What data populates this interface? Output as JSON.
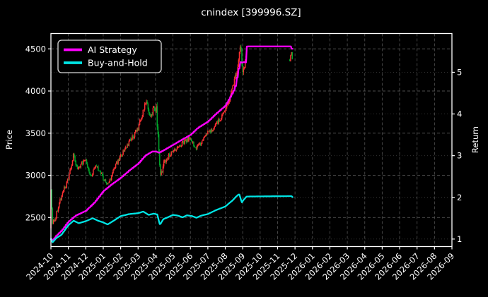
{
  "window": {
    "title": "cnindex [399996.SZ]"
  },
  "legend": {
    "items": [
      {
        "label": "AI Strategy",
        "color": "#ff00ff"
      },
      {
        "label": "Buy-and-Hold",
        "color": "#00e5e5"
      }
    ]
  },
  "colors": {
    "background": "#000000",
    "text": "#ffffff",
    "border": "#ffffff",
    "grid_major": "#4d4d4d",
    "grid_minor": "#3a3a3a",
    "candle_up": "#fc3032",
    "candle_down": "#00a42a",
    "ai_line": "#ff00ff",
    "bh_line": "#00e5e5"
  },
  "chart_data": {
    "type": "candlestick+line",
    "title": "cnindex [399996.SZ]",
    "xlabel": "",
    "left_axis": {
      "label": "Price",
      "ticks": [
        2500,
        3000,
        3500,
        4000,
        4500
      ],
      "min": 2155,
      "max": 4682
    },
    "right_axis": {
      "label": "Return",
      "ticks": [
        1,
        2,
        3,
        4,
        5
      ],
      "min": 0.82,
      "max": 5.93
    },
    "x_tick_labels": [
      "2024-10",
      "2024-11",
      "2024-12",
      "2025-01",
      "2025-02",
      "2025-03",
      "2025-04",
      "2025-05",
      "2025-06",
      "2025-07",
      "2025-08",
      "2025-09",
      "2025-10",
      "2025-11",
      "2025-12",
      "2026-01",
      "2026-02",
      "2026-03",
      "2026-04",
      "2026-05",
      "2026-06",
      "2026-07",
      "2026-08",
      "2026-09"
    ],
    "grid": true,
    "legend_position": "upper left",
    "candles": {
      "up_color": "#fc3032",
      "down_color": "#00a42a",
      "days_per_month": 21,
      "segments": [
        {
          "t_start": 0.0,
          "t_end": 11.22
        },
        {
          "t_start": 13.7,
          "t_end": 13.87
        }
      ],
      "price_keypoints": [
        [
          0.0,
          2820
        ],
        [
          0.1,
          2430
        ],
        [
          0.25,
          2480
        ],
        [
          0.4,
          2610
        ],
        [
          0.6,
          2740
        ],
        [
          0.8,
          2860
        ],
        [
          1.0,
          2950
        ],
        [
          1.3,
          3240
        ],
        [
          1.5,
          3060
        ],
        [
          1.75,
          3140
        ],
        [
          2.0,
          3160
        ],
        [
          2.3,
          2990
        ],
        [
          2.6,
          3130
        ],
        [
          2.85,
          3020
        ],
        [
          3.0,
          2960
        ],
        [
          3.3,
          2890
        ],
        [
          3.6,
          3070
        ],
        [
          4.0,
          3230
        ],
        [
          4.4,
          3360
        ],
        [
          4.7,
          3460
        ],
        [
          5.0,
          3560
        ],
        [
          5.2,
          3700
        ],
        [
          5.45,
          3870
        ],
        [
          5.6,
          3760
        ],
        [
          5.75,
          3700
        ],
        [
          5.9,
          3820
        ],
        [
          6.05,
          3780
        ],
        [
          6.18,
          3350
        ],
        [
          6.28,
          2960
        ],
        [
          6.45,
          3130
        ],
        [
          6.7,
          3220
        ],
        [
          7.0,
          3290
        ],
        [
          7.4,
          3360
        ],
        [
          7.7,
          3400
        ],
        [
          8.0,
          3450
        ],
        [
          8.3,
          3320
        ],
        [
          8.6,
          3380
        ],
        [
          9.0,
          3500
        ],
        [
          9.4,
          3580
        ],
        [
          9.8,
          3700
        ],
        [
          10.1,
          3820
        ],
        [
          10.4,
          4020
        ],
        [
          10.6,
          4180
        ],
        [
          10.8,
          4420
        ],
        [
          10.9,
          4520
        ],
        [
          11.0,
          4200
        ],
        [
          11.1,
          4300
        ],
        [
          11.22,
          4450
        ],
        [
          13.7,
          4360
        ],
        [
          13.78,
          4480
        ],
        [
          13.87,
          4350
        ]
      ],
      "volatility_keypoints": [
        [
          0.0,
          2.2
        ],
        [
          0.2,
          1.6
        ],
        [
          0.6,
          1.3
        ],
        [
          1.5,
          1.2
        ],
        [
          3.0,
          1.0
        ],
        [
          5.0,
          1.1
        ],
        [
          5.9,
          1.2
        ],
        [
          6.15,
          2.2
        ],
        [
          6.35,
          1.5
        ],
        [
          6.8,
          1.0
        ],
        [
          8.0,
          0.9
        ],
        [
          9.5,
          0.9
        ],
        [
          10.4,
          1.1
        ],
        [
          10.9,
          1.5
        ],
        [
          11.22,
          1.3
        ],
        [
          13.7,
          0.5
        ],
        [
          13.87,
          0.5
        ]
      ]
    },
    "series": [
      {
        "name": "AI Strategy",
        "color": "#ff00ff",
        "axis": "return",
        "style": "step",
        "keypoints": [
          [
            0.0,
            1.0
          ],
          [
            0.1,
            0.97
          ],
          [
            0.3,
            1.08
          ],
          [
            0.6,
            1.2
          ],
          [
            1.0,
            1.42
          ],
          [
            1.4,
            1.56
          ],
          [
            2.0,
            1.68
          ],
          [
            2.5,
            1.88
          ],
          [
            3.0,
            2.15
          ],
          [
            3.5,
            2.32
          ],
          [
            4.0,
            2.47
          ],
          [
            4.5,
            2.65
          ],
          [
            5.0,
            2.81
          ],
          [
            5.4,
            3.0
          ],
          [
            5.8,
            3.1
          ],
          [
            6.0,
            3.1
          ],
          [
            6.2,
            3.07
          ],
          [
            6.5,
            3.14
          ],
          [
            7.0,
            3.26
          ],
          [
            7.4,
            3.36
          ],
          [
            8.0,
            3.5
          ],
          [
            8.4,
            3.66
          ],
          [
            9.0,
            3.82
          ],
          [
            9.5,
            4.02
          ],
          [
            10.0,
            4.2
          ],
          [
            10.3,
            4.42
          ],
          [
            10.55,
            4.62
          ],
          [
            10.7,
            4.95
          ],
          [
            10.82,
            5.22
          ],
          [
            10.92,
            5.28
          ],
          [
            11.0,
            5.16
          ],
          [
            11.08,
            5.3
          ],
          [
            11.14,
            5.22
          ],
          [
            11.22,
            5.62
          ],
          [
            13.76,
            5.62
          ],
          [
            13.8,
            5.55
          ],
          [
            13.87,
            5.66
          ]
        ]
      },
      {
        "name": "Buy-and-Hold",
        "color": "#00e5e5",
        "axis": "return",
        "style": "line",
        "keypoints": [
          [
            0.0,
            1.0
          ],
          [
            0.1,
            0.92
          ],
          [
            0.3,
            1.02
          ],
          [
            0.6,
            1.1
          ],
          [
            1.0,
            1.33
          ],
          [
            1.3,
            1.44
          ],
          [
            1.6,
            1.38
          ],
          [
            2.0,
            1.43
          ],
          [
            2.4,
            1.5
          ],
          [
            2.7,
            1.44
          ],
          [
            3.0,
            1.4
          ],
          [
            3.25,
            1.35
          ],
          [
            3.6,
            1.44
          ],
          [
            4.0,
            1.55
          ],
          [
            4.5,
            1.6
          ],
          [
            5.0,
            1.62
          ],
          [
            5.3,
            1.66
          ],
          [
            5.6,
            1.58
          ],
          [
            5.9,
            1.61
          ],
          [
            6.1,
            1.59
          ],
          [
            6.25,
            1.34
          ],
          [
            6.45,
            1.48
          ],
          [
            6.7,
            1.52
          ],
          [
            7.0,
            1.58
          ],
          [
            7.3,
            1.56
          ],
          [
            7.55,
            1.52
          ],
          [
            7.8,
            1.57
          ],
          [
            8.1,
            1.55
          ],
          [
            8.35,
            1.51
          ],
          [
            8.6,
            1.56
          ],
          [
            9.0,
            1.6
          ],
          [
            9.5,
            1.7
          ],
          [
            10.0,
            1.78
          ],
          [
            10.4,
            1.92
          ],
          [
            10.65,
            2.03
          ],
          [
            10.8,
            2.08
          ],
          [
            10.95,
            1.88
          ],
          [
            11.05,
            1.94
          ],
          [
            11.22,
            2.02
          ],
          [
            13.8,
            2.03
          ],
          [
            13.87,
            2.0
          ]
        ]
      }
    ]
  }
}
